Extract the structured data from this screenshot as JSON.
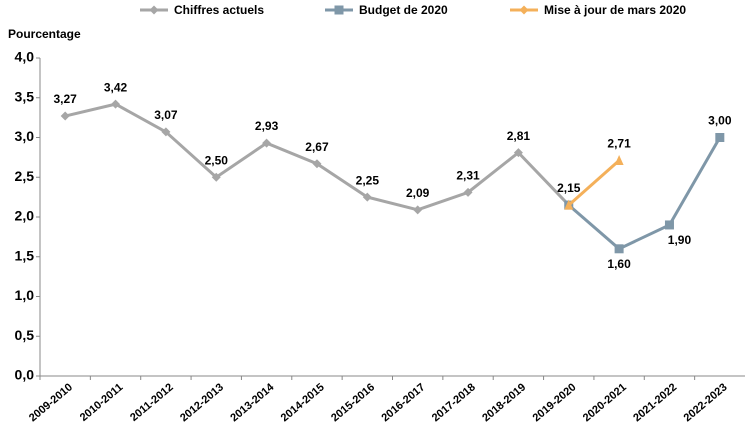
{
  "chart_data": {
    "type": "line",
    "y_label": "Pourcentage",
    "categories": [
      "2009-2010",
      "2010-2011",
      "2011-2012",
      "2012-2013",
      "2013-2014",
      "2014-2015",
      "2015-2016",
      "2016-2017",
      "2017-2018",
      "2018-2019",
      "2019-2020",
      "2020-2021",
      "2021-2022",
      "2022-2023"
    ],
    "series": [
      {
        "name": "Chiffres actuels",
        "color": "#a6a6a6",
        "marker": "diamond",
        "values": [
          3.27,
          3.42,
          3.07,
          2.5,
          2.93,
          2.67,
          2.25,
          2.09,
          2.31,
          2.81,
          2.15,
          null,
          null,
          null
        ],
        "value_labels": [
          "3,27",
          "3,42",
          "3,07",
          "2,50",
          "2,93",
          "2,67",
          "2,25",
          "2,09",
          "2,31",
          "2,81",
          "2,15",
          null,
          null,
          null
        ]
      },
      {
        "name": "Budget de 2020",
        "color": "#7f97a8",
        "marker": "square",
        "values": [
          null,
          null,
          null,
          null,
          null,
          null,
          null,
          null,
          null,
          null,
          2.15,
          1.6,
          1.9,
          3.0
        ],
        "value_labels": [
          null,
          null,
          null,
          null,
          null,
          null,
          null,
          null,
          null,
          null,
          null,
          "1,60",
          "1,90",
          "3,00"
        ]
      },
      {
        "name": "Mise à jour de mars 2020",
        "color": "#f4b05a",
        "marker": "triangle",
        "values": [
          null,
          null,
          null,
          null,
          null,
          null,
          null,
          null,
          null,
          null,
          2.15,
          2.71,
          null,
          null
        ],
        "value_labels": [
          null,
          null,
          null,
          null,
          null,
          null,
          null,
          null,
          null,
          null,
          null,
          "2,71",
          null,
          null
        ]
      }
    ],
    "ylim": [
      0,
      4
    ],
    "yticks": [
      {
        "value": 0,
        "label": "0,0"
      },
      {
        "value": 0.5,
        "label": "0,5"
      },
      {
        "value": 1,
        "label": "1,0"
      },
      {
        "value": 1.5,
        "label": "1,5"
      },
      {
        "value": 2,
        "label": "2,0"
      },
      {
        "value": 2.5,
        "label": "2,5"
      },
      {
        "value": 3,
        "label": "3,0"
      },
      {
        "value": 3.5,
        "label": "3,5"
      },
      {
        "value": 4,
        "label": "4,0"
      }
    ],
    "legend": "top",
    "grid": false
  }
}
